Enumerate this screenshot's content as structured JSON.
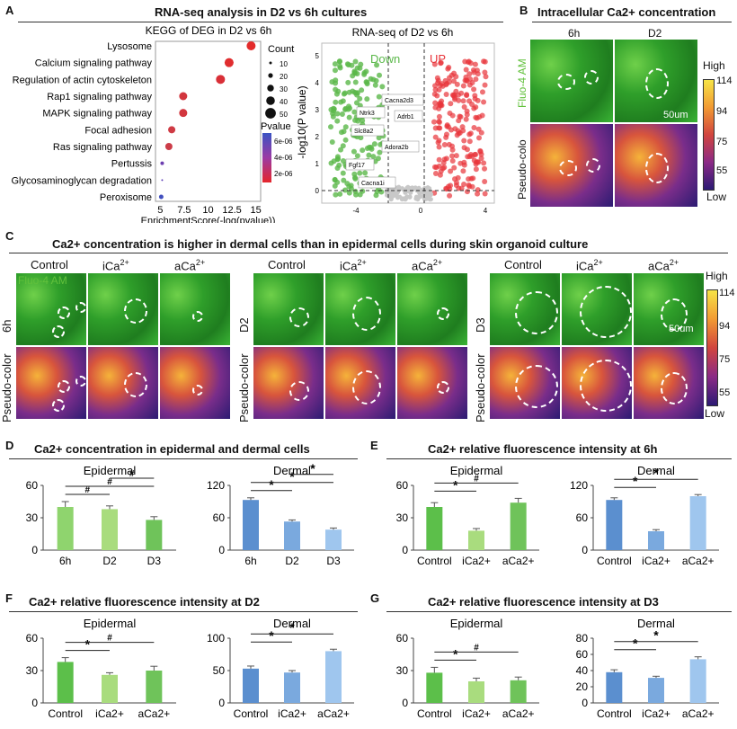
{
  "panels": {
    "A": {
      "label": "A",
      "title": "RNA-seq analysis in D2 vs 6h cultures",
      "kegg": {
        "title": "KEGG of DEG in D2 vs 6h",
        "xlabel": "EnrichmentScore(-log(pvalue))",
        "terms": [
          "Lysosome",
          "Calcium signaling pathway",
          "Regulation of actin cytoskeleton",
          "Rap1 signaling pathway",
          "MAPK signaling pathway",
          "Focal adhesion",
          "Ras signaling pathway",
          "Pertussis",
          "Glycosaminoglycan degradation",
          "Peroxisome"
        ],
        "scores": [
          14.5,
          12.2,
          11.3,
          7.4,
          7.4,
          6.2,
          5.9,
          5.2,
          5.2,
          5.1
        ],
        "xticks": [
          "5",
          "7.5",
          "10",
          "12.5",
          "15"
        ],
        "count_title": "Count",
        "count_labels": [
          "10",
          "20",
          "30",
          "40",
          "50"
        ],
        "pvalue_title": "Pvalue",
        "pvalue_labels": [
          "6e-06",
          "4e-06",
          "2e-06"
        ]
      },
      "volcano": {
        "title": "RNA-seq of D2 vs 6h",
        "ylabel": "-log10(P value)",
        "down": "Down",
        "up": "UP",
        "genes": [
          "Cacna2d3",
          "Ntrk3",
          "Adrb1",
          "Slc8a2",
          "Adora2b",
          "Fgf17",
          "Cacna1i"
        ],
        "xticks": [
          "-4",
          "0",
          "4"
        ],
        "yticks": [
          "0",
          "1",
          "2",
          "3",
          "4",
          "5"
        ],
        "colors": {
          "down": "#5bb84a",
          "up": "#e8343a"
        }
      }
    },
    "B": {
      "label": "B",
      "title": "Intracellular Ca2+ concentration",
      "cols": [
        "6h",
        "D2"
      ],
      "rows": [
        "Fluo-4 AM",
        "Pseudo-colo"
      ],
      "scale_high": "High",
      "scale_low": "Low",
      "scale_values": [
        "114",
        "94",
        "75",
        "55"
      ],
      "scalebar": "50um"
    },
    "C": {
      "label": "C",
      "title": "Ca2+ concentration is higher in dermal cells than in epidermal cells during skin organoid culture",
      "cols": [
        "Control",
        "iCa",
        "aCa"
      ],
      "sup": "2+",
      "times": [
        "6h",
        "D2",
        "D3"
      ],
      "overlay": "Fluo-4 AM",
      "row2": "Pseudo-color",
      "scale_high": "High",
      "scale_low": "Low",
      "scale_values": [
        "114",
        "94",
        "75",
        "55"
      ],
      "scalebar": "50um"
    },
    "D": {
      "label": "D",
      "title": "Ca2+ concentration in epidermal and dermal cells"
    },
    "E": {
      "label": "E",
      "title": "Ca2+ relative fluorescence intensity at 6h"
    },
    "F": {
      "label": "F",
      "title": "Ca2+ relative fluorescence intensity at D2"
    },
    "G": {
      "label": "G",
      "title": "Ca2+ relative fluorescence intensity at D3"
    }
  },
  "chart_data": [
    {
      "panel": "A",
      "type": "scatter",
      "title": "KEGG of DEG in D2 vs 6h",
      "xlabel": "EnrichmentScore(-log(pvalue))",
      "xlim": [
        4.5,
        15.5
      ],
      "categories": [
        "Lysosome",
        "Calcium signaling pathway",
        "Regulation of actin cytoskeleton",
        "Rap1 signaling pathway",
        "MAPK signaling pathway",
        "Focal adhesion",
        "Ras signaling pathway",
        "Pertussis",
        "Glycosaminoglycan degradation",
        "Peroxisome"
      ],
      "values": [
        14.5,
        12.2,
        11.3,
        7.4,
        7.4,
        6.2,
        5.9,
        5.2,
        5.2,
        5.1
      ]
    },
    {
      "panel": "D",
      "type": "bar",
      "title": "Epidermal",
      "categories": [
        "6h",
        "D2",
        "D3"
      ],
      "values": [
        40,
        38,
        28
      ],
      "errors": [
        5,
        3,
        3
      ],
      "ylim": [
        0,
        60
      ],
      "yticks": [
        0,
        30,
        60
      ],
      "colors": [
        "#8fd46e",
        "#a9dc7e",
        "#6fc35a"
      ],
      "sig": [
        "#",
        "#",
        "#"
      ]
    },
    {
      "panel": "D",
      "type": "bar",
      "title": "Dermal",
      "categories": [
        "6h",
        "D2",
        "D3"
      ],
      "values": [
        93,
        53,
        38
      ],
      "errors": [
        4,
        3,
        3
      ],
      "ylim": [
        0,
        120
      ],
      "yticks": [
        0,
        60,
        120
      ],
      "colors": [
        "#5b8fcf",
        "#7aa9de",
        "#9fc6ee"
      ],
      "sig": [
        "*",
        "*",
        "*"
      ]
    },
    {
      "panel": "E",
      "type": "bar",
      "title": "Epidermal",
      "categories": [
        "Control",
        "iCa2+",
        "aCa2+"
      ],
      "values": [
        40,
        18,
        44
      ],
      "errors": [
        4,
        2,
        4
      ],
      "ylim": [
        0,
        60
      ],
      "yticks": [
        0,
        30,
        60
      ],
      "colors": [
        "#5cbf4a",
        "#a9dc7e",
        "#6fc35a"
      ],
      "sig": [
        "*",
        "#"
      ]
    },
    {
      "panel": "E",
      "type": "bar",
      "title": "Dermal",
      "categories": [
        "Control",
        "iCa2+",
        "aCa2+"
      ],
      "values": [
        93,
        35,
        100
      ],
      "errors": [
        4,
        3,
        3
      ],
      "ylim": [
        0,
        120
      ],
      "yticks": [
        0,
        60,
        120
      ],
      "colors": [
        "#5b8fcf",
        "#7aa9de",
        "#9fc6ee"
      ],
      "sig": [
        "*",
        "*"
      ]
    },
    {
      "panel": "F",
      "type": "bar",
      "title": "Epidermal",
      "categories": [
        "Control",
        "iCa2+",
        "aCa2+"
      ],
      "values": [
        38,
        26,
        30
      ],
      "errors": [
        4,
        2,
        4
      ],
      "ylim": [
        0,
        60
      ],
      "yticks": [
        0,
        30,
        60
      ],
      "colors": [
        "#5cbf4a",
        "#a9dc7e",
        "#6fc35a"
      ],
      "sig": [
        "*",
        "#"
      ]
    },
    {
      "panel": "F",
      "type": "bar",
      "title": "Dermal",
      "categories": [
        "Control",
        "iCa2+",
        "aCa2+"
      ],
      "values": [
        53,
        47,
        80
      ],
      "errors": [
        4,
        3,
        3
      ],
      "ylim": [
        0,
        100
      ],
      "yticks": [
        0,
        50,
        100
      ],
      "colors": [
        "#5b8fcf",
        "#7aa9de",
        "#9fc6ee"
      ],
      "sig": [
        "*",
        "*"
      ]
    },
    {
      "panel": "G",
      "type": "bar",
      "title": "Epidermal",
      "categories": [
        "Control",
        "iCa2+",
        "aCa2+"
      ],
      "values": [
        28,
        20,
        21
      ],
      "errors": [
        5,
        3,
        3
      ],
      "ylim": [
        0,
        60
      ],
      "yticks": [
        0,
        30,
        60
      ],
      "colors": [
        "#5cbf4a",
        "#a9dc7e",
        "#6fc35a"
      ],
      "sig": [
        "*",
        "#"
      ]
    },
    {
      "panel": "G",
      "type": "bar",
      "title": "Dermal",
      "categories": [
        "Control",
        "iCa2+",
        "aCa2+"
      ],
      "values": [
        38,
        31,
        54
      ],
      "errors": [
        3,
        2,
        3
      ],
      "ylim": [
        0,
        80
      ],
      "yticks": [
        0,
        20,
        40,
        60,
        80
      ],
      "colors": [
        "#5b8fcf",
        "#7aa9de",
        "#9fc6ee"
      ],
      "sig": [
        "*",
        "*"
      ]
    }
  ]
}
